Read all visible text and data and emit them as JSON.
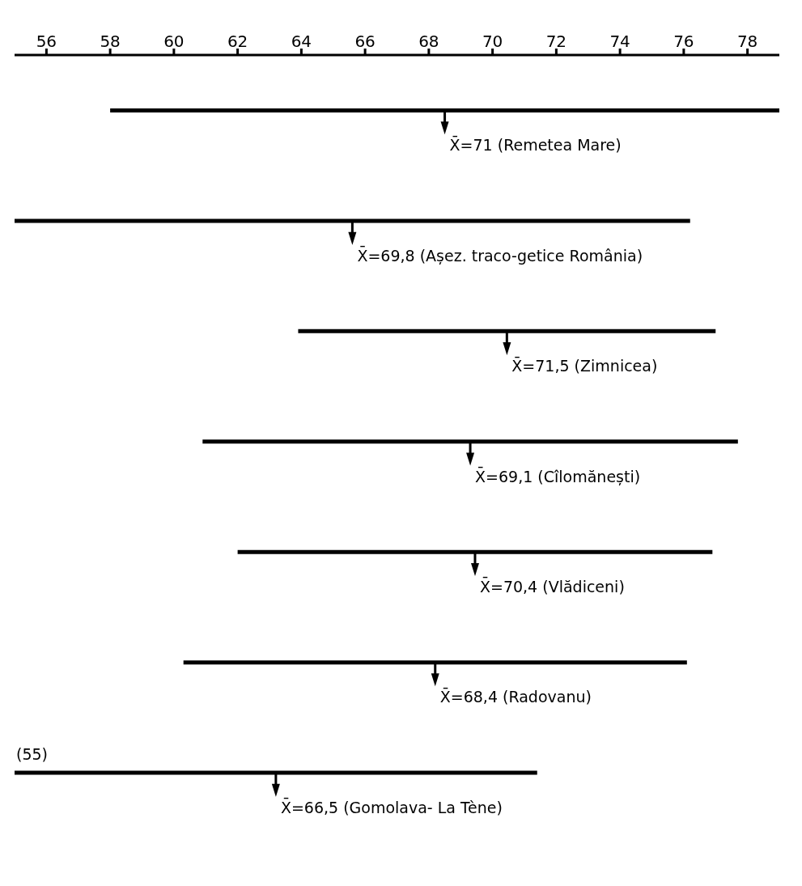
{
  "chart_data": {
    "type": "bar",
    "orientation": "horizontal",
    "categories": [
      null,
      null,
      null,
      null,
      null,
      null,
      null
    ],
    "series": [
      {
        "color": "#000000",
        "base": [
          58,
          55,
          63.9,
          60.9,
          62,
          60.3,
          55
        ],
        "values": [
          21,
          21.2,
          13.1,
          16.8,
          14.9,
          15.8,
          16.4
        ]
      }
    ],
    "xlim": [
      55,
      79
    ],
    "xticks": [
      56,
      58,
      60,
      62,
      64,
      66,
      68,
      70,
      72,
      74,
      76,
      78
    ],
    "annotations": [
      "X̄=71 (Remetea Mare)",
      "X̄=69,8 (Așez. traco-getice România)",
      "X̄=71,5 (Zimnicea)",
      "X̄=69,1 (Cîlomănești)",
      "X̄=70,4 (Vlădiceni)",
      "X̄=68,4 (Radovanu)",
      "X̄=66,5 (Gomolava- La Tène)",
      "(55)"
    ],
    "legend": false,
    "grid": false
  }
}
